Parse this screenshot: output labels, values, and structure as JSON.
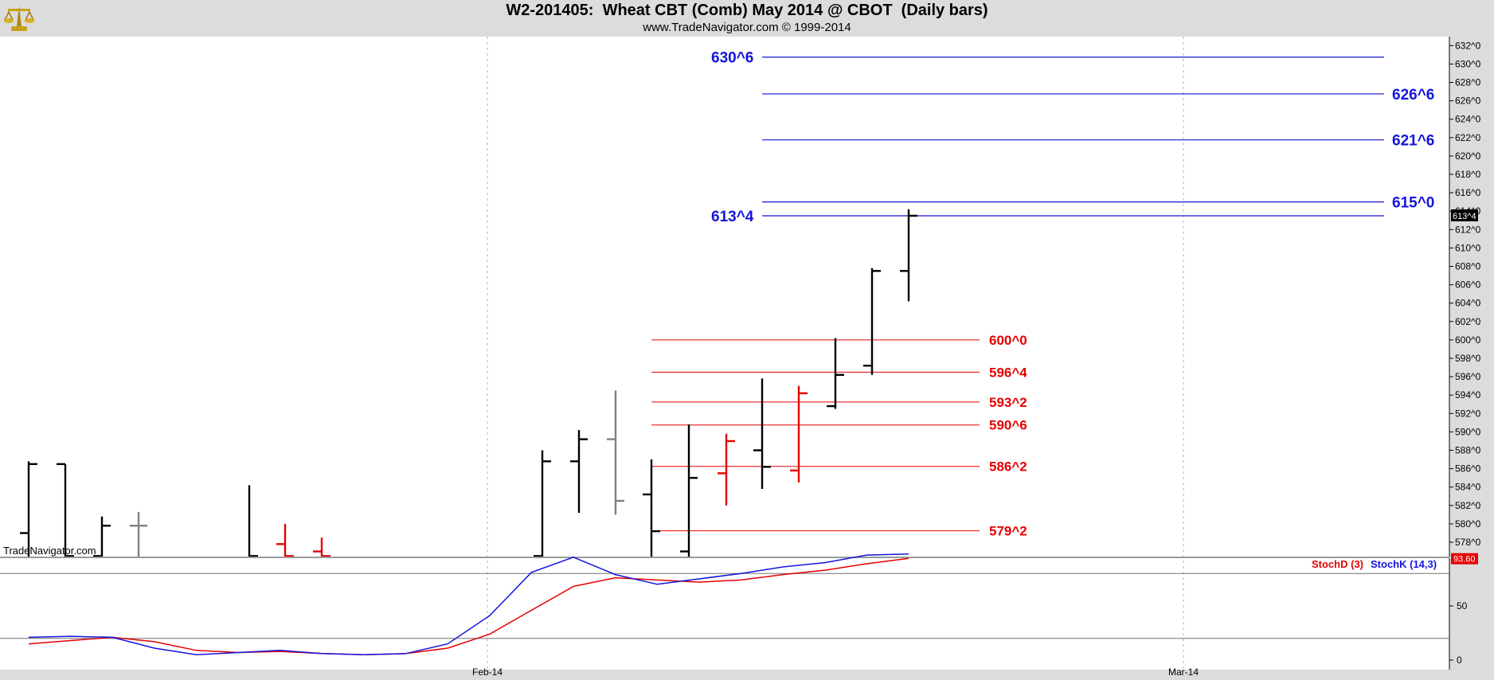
{
  "header": {
    "title": "W2-201405:  Wheat CBT (Comb) May 2014 @ CBOT  (Daily bars)",
    "subtitle": "www.TradeNavigator.com © 1999-2014"
  },
  "watermark": "TradeNavigator.com",
  "chart_data": [
    {
      "type": "ohlc",
      "title": "W2-201405:  Wheat CBT (Comb) May 2014 @ CBOT  (Daily bars)",
      "y_ticks": [
        "578^0",
        "580^0",
        "582^0",
        "584^0",
        "586^0",
        "588^0",
        "590^0",
        "592^0",
        "594^0",
        "596^0",
        "598^0",
        "600^0",
        "602^0",
        "604^0",
        "606^0",
        "608^0",
        "610^0",
        "612^0",
        "614^0",
        "616^0",
        "618^0",
        "620^0",
        "622^0",
        "624^0",
        "626^0",
        "628^0",
        "630^0",
        "632^0"
      ],
      "ylim": [
        576.1,
        633.2
      ],
      "x_labels": [
        "Feb-14",
        "Mar-14"
      ],
      "last_price_label": "613^4",
      "bars": [
        {
          "open": 579.0,
          "high": 586.8,
          "low": 576.0,
          "close": 586.5,
          "color": "black"
        },
        {
          "open": 586.5,
          "high": 586.5,
          "low": 576.0,
          "close": 576.5,
          "color": "black"
        },
        {
          "open": 576.5,
          "high": 580.8,
          "low": 576.0,
          "close": 579.8,
          "color": "black"
        },
        {
          "open": 579.8,
          "high": 581.3,
          "low": 576.0,
          "close": 579.8,
          "color": "gray"
        },
        {
          "open": 576.0,
          "high": 584.2,
          "low": 576.0,
          "close": 576.5,
          "color": "black"
        },
        {
          "open": 577.8,
          "high": 580.0,
          "low": 576.0,
          "close": 576.5,
          "color": "red"
        },
        {
          "open": 577.0,
          "high": 578.5,
          "low": 576.0,
          "close": 576.5,
          "color": "red"
        },
        {
          "open": 576.5,
          "high": 588.0,
          "low": 576.0,
          "close": 586.8,
          "color": "black"
        },
        {
          "open": 586.8,
          "high": 590.2,
          "low": 581.2,
          "close": 589.2,
          "color": "black"
        },
        {
          "open": 589.2,
          "high": 594.5,
          "low": 581.0,
          "close": 582.5,
          "color": "gray"
        },
        {
          "open": 583.2,
          "high": 587.0,
          "low": 576.0,
          "close": 579.2,
          "color": "black"
        },
        {
          "open": 577.0,
          "high": 590.8,
          "low": 576.0,
          "close": 585.0,
          "color": "black"
        },
        {
          "open": 585.5,
          "high": 589.8,
          "low": 582.0,
          "close": 589.0,
          "color": "red"
        },
        {
          "open": 588.0,
          "high": 595.8,
          "low": 583.8,
          "close": 586.2,
          "color": "black"
        },
        {
          "open": 585.8,
          "high": 595.0,
          "low": 584.5,
          "close": 594.2,
          "color": "red"
        },
        {
          "open": 592.8,
          "high": 600.2,
          "low": 592.5,
          "close": 596.2,
          "color": "black"
        },
        {
          "open": 597.2,
          "high": 607.8,
          "low": 596.2,
          "close": 607.5,
          "color": "black"
        },
        {
          "open": 607.5,
          "high": 614.2,
          "low": 604.2,
          "close": 613.5,
          "color": "black"
        }
      ],
      "resistance_levels": [
        {
          "label": "630^6",
          "value": 630.75
        },
        {
          "label": "626^6",
          "value": 626.75
        },
        {
          "label": "621^6",
          "value": 621.75
        },
        {
          "label": "615^0",
          "value": 615.0
        },
        {
          "label": "613^4",
          "value": 613.5
        }
      ],
      "support_levels": [
        {
          "label": "600^0",
          "value": 600.0
        },
        {
          "label": "596^4",
          "value": 596.5
        },
        {
          "label": "593^2",
          "value": 593.25
        },
        {
          "label": "590^6",
          "value": 590.75
        },
        {
          "label": "586^2",
          "value": 586.25
        },
        {
          "label": "579^2",
          "value": 579.25
        }
      ],
      "colors": {
        "resistance": "#1414dc",
        "support": "#e60000",
        "up": "#000000",
        "down": "#e60000",
        "neutral": "#808080"
      }
    },
    {
      "type": "line",
      "y_ticks": [
        "0",
        "50"
      ],
      "ylim": [
        0,
        110
      ],
      "reference_lines": [
        20,
        80
      ],
      "last_value_label": "93.60",
      "series": [
        {
          "name": "StochD (3)",
          "color": "#e60000",
          "values": [
            15,
            18,
            21,
            17,
            9,
            7,
            8,
            6,
            5,
            6,
            11,
            24,
            46,
            68,
            76,
            74,
            72,
            74,
            79,
            83,
            89,
            94
          ]
        },
        {
          "name": "StochK (14,3)",
          "color": "#1414dc",
          "values": [
            21,
            22,
            21,
            11,
            5,
            7,
            9,
            6,
            5,
            6,
            15,
            41,
            81,
            95,
            79,
            70,
            75,
            80,
            86,
            90,
            97,
            98
          ]
        }
      ]
    }
  ]
}
